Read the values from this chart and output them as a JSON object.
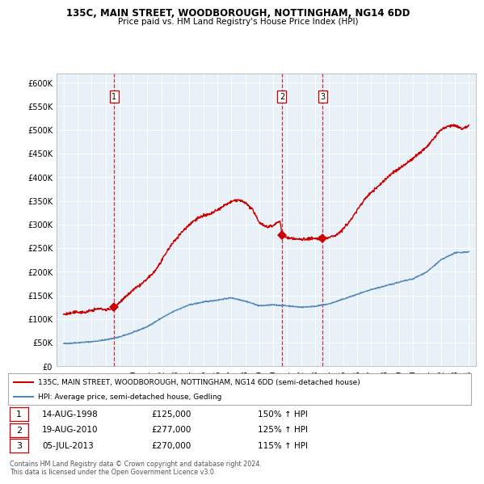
{
  "title1": "135C, MAIN STREET, WOODBOROUGH, NOTTINGHAM, NG14 6DD",
  "title2": "Price paid vs. HM Land Registry's House Price Index (HPI)",
  "ylim": [
    0,
    620000
  ],
  "yticks": [
    0,
    50000,
    100000,
    150000,
    200000,
    250000,
    300000,
    350000,
    400000,
    450000,
    500000,
    550000,
    600000
  ],
  "ytick_labels": [
    "£0",
    "£50K",
    "£100K",
    "£150K",
    "£200K",
    "£250K",
    "£300K",
    "£350K",
    "£400K",
    "£450K",
    "£500K",
    "£550K",
    "£600K"
  ],
  "sale_dates": [
    1998.62,
    2010.62,
    2013.54
  ],
  "sale_prices": [
    125000,
    277000,
    270000
  ],
  "sale_labels": [
    "1",
    "2",
    "3"
  ],
  "vline_dates": [
    1998.62,
    2010.62,
    2013.54
  ],
  "legend_line1": "135C, MAIN STREET, WOODBOROUGH, NOTTINGHAM, NG14 6DD (semi-detached house)",
  "legend_line2": "HPI: Average price, semi-detached house, Gedling",
  "table_rows": [
    [
      "1",
      "14-AUG-1998",
      "£125,000",
      "150% ↑ HPI"
    ],
    [
      "2",
      "19-AUG-2010",
      "£277,000",
      "125% ↑ HPI"
    ],
    [
      "3",
      "05-JUL-2013",
      "£270,000",
      "115% ↑ HPI"
    ]
  ],
  "footer": "Contains HM Land Registry data © Crown copyright and database right 2024.\nThis data is licensed under the Open Government Licence v3.0.",
  "red_color": "#cc0000",
  "blue_color": "#5588bb",
  "plot_bg_color": "#e8f0f8",
  "background_color": "#ffffff",
  "grid_color": "#ffffff"
}
